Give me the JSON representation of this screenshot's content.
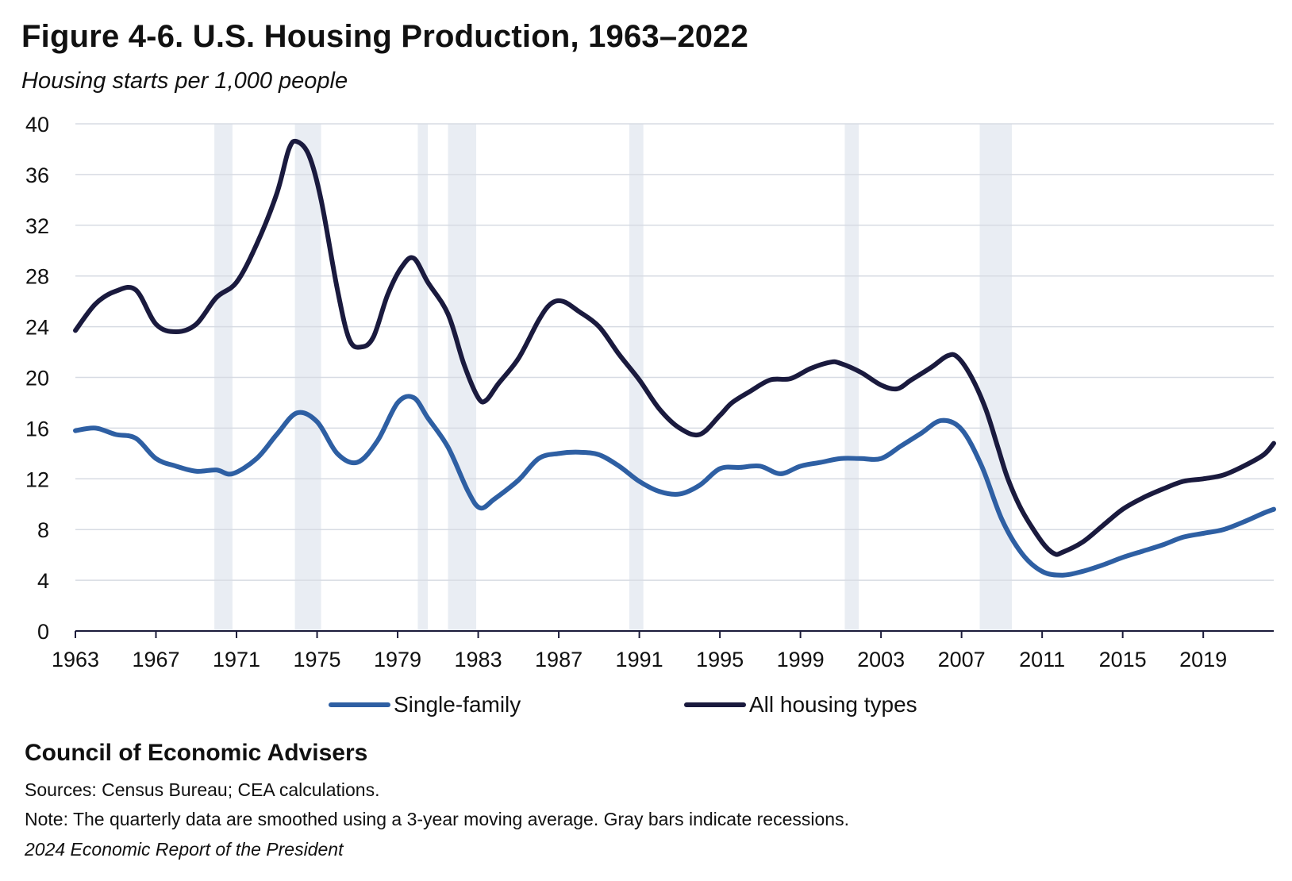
{
  "title": "Figure 4-6. U.S. Housing Production, 1963–2022",
  "subtitle": "Housing starts per 1,000 people",
  "footer": {
    "org": "Council of Economic Advisers",
    "sources": "Sources: Census Bureau; CEA calculations.",
    "note": "Note: The quarterly data are smoothed using a 3-year moving average. Gray bars indicate recessions.",
    "report": "2024 Economic Report of the President"
  },
  "chart_data": {
    "type": "line",
    "title": "Figure 4-6. U.S. Housing Production, 1963–2022",
    "subtitle": "Housing starts per 1,000 people",
    "xlabel": "",
    "ylabel": "Housing starts per 1,000 people",
    "xlim": [
      1963,
      2022.5
    ],
    "ylim": [
      0,
      40
    ],
    "xticks": [
      "1963",
      "1967",
      "1971",
      "1975",
      "1979",
      "1983",
      "1987",
      "1991",
      "1995",
      "1999",
      "2003",
      "2007",
      "2011",
      "2015",
      "2019"
    ],
    "yticks": [
      "0",
      "4",
      "8",
      "12",
      "16",
      "20",
      "24",
      "28",
      "32",
      "36",
      "40"
    ],
    "grid": "horizontal",
    "legend": "bottom",
    "recessions": [
      [
        1969.9,
        1970.8
      ],
      [
        1973.9,
        1975.2
      ],
      [
        1980.0,
        1980.5
      ],
      [
        1981.5,
        1982.9
      ],
      [
        1990.5,
        1991.2
      ],
      [
        2001.2,
        2001.9
      ],
      [
        2007.9,
        2009.5
      ]
    ],
    "colors": {
      "recession": "#e9edf3",
      "grid": "#d7dbe3",
      "axis": "#1b1b3a"
    },
    "series": [
      {
        "name": "Single-family",
        "color": "#2e5fa3",
        "points": [
          [
            1963.0,
            15.8
          ],
          [
            1964.0,
            16.0
          ],
          [
            1965.0,
            15.5
          ],
          [
            1966.0,
            15.2
          ],
          [
            1967.0,
            13.6
          ],
          [
            1968.0,
            13.0
          ],
          [
            1969.0,
            12.6
          ],
          [
            1970.0,
            12.7
          ],
          [
            1970.8,
            12.4
          ],
          [
            1972.0,
            13.6
          ],
          [
            1973.0,
            15.5
          ],
          [
            1974.0,
            17.2
          ],
          [
            1975.0,
            16.5
          ],
          [
            1976.0,
            14.0
          ],
          [
            1977.0,
            13.3
          ],
          [
            1978.0,
            15.0
          ],
          [
            1979.0,
            18.0
          ],
          [
            1979.8,
            18.4
          ],
          [
            1980.5,
            16.8
          ],
          [
            1981.5,
            14.5
          ],
          [
            1982.5,
            11.0
          ],
          [
            1983.1,
            9.7
          ],
          [
            1983.8,
            10.4
          ],
          [
            1985.0,
            11.9
          ],
          [
            1986.0,
            13.6
          ],
          [
            1987.0,
            14.0
          ],
          [
            1988.0,
            14.1
          ],
          [
            1989.0,
            13.9
          ],
          [
            1990.0,
            13.0
          ],
          [
            1991.0,
            11.8
          ],
          [
            1992.0,
            11.0
          ],
          [
            1993.0,
            10.8
          ],
          [
            1994.0,
            11.5
          ],
          [
            1995.0,
            12.8
          ],
          [
            1996.0,
            12.9
          ],
          [
            1997.0,
            13.0
          ],
          [
            1998.0,
            12.4
          ],
          [
            1999.0,
            13.0
          ],
          [
            2000.0,
            13.3
          ],
          [
            2001.0,
            13.6
          ],
          [
            2002.0,
            13.6
          ],
          [
            2003.0,
            13.6
          ],
          [
            2004.0,
            14.6
          ],
          [
            2005.0,
            15.6
          ],
          [
            2006.0,
            16.6
          ],
          [
            2007.0,
            15.9
          ],
          [
            2008.0,
            13.0
          ],
          [
            2009.0,
            8.8
          ],
          [
            2010.0,
            6.1
          ],
          [
            2011.0,
            4.7
          ],
          [
            2012.0,
            4.4
          ],
          [
            2013.0,
            4.7
          ],
          [
            2014.0,
            5.2
          ],
          [
            2015.0,
            5.8
          ],
          [
            2016.0,
            6.3
          ],
          [
            2017.0,
            6.8
          ],
          [
            2018.0,
            7.4
          ],
          [
            2019.0,
            7.7
          ],
          [
            2020.0,
            8.0
          ],
          [
            2021.0,
            8.6
          ],
          [
            2022.0,
            9.3
          ],
          [
            2022.5,
            9.6
          ]
        ]
      },
      {
        "name": "All housing types",
        "color": "#1a1a3e",
        "points": [
          [
            1963.0,
            23.7
          ],
          [
            1964.0,
            25.8
          ],
          [
            1965.0,
            26.8
          ],
          [
            1966.0,
            26.9
          ],
          [
            1967.0,
            24.2
          ],
          [
            1968.0,
            23.6
          ],
          [
            1969.0,
            24.2
          ],
          [
            1970.0,
            26.3
          ],
          [
            1971.0,
            27.5
          ],
          [
            1972.0,
            30.5
          ],
          [
            1973.0,
            34.5
          ],
          [
            1973.6,
            38.0
          ],
          [
            1974.0,
            38.6
          ],
          [
            1974.6,
            37.5
          ],
          [
            1975.2,
            34.0
          ],
          [
            1976.0,
            27.0
          ],
          [
            1976.6,
            23.0
          ],
          [
            1977.2,
            22.4
          ],
          [
            1977.8,
            23.2
          ],
          [
            1978.5,
            26.5
          ],
          [
            1979.2,
            28.7
          ],
          [
            1979.8,
            29.4
          ],
          [
            1980.5,
            27.5
          ],
          [
            1981.5,
            25.0
          ],
          [
            1982.3,
            21.0
          ],
          [
            1983.0,
            18.4
          ],
          [
            1983.4,
            18.2
          ],
          [
            1984.0,
            19.5
          ],
          [
            1985.0,
            21.5
          ],
          [
            1986.0,
            24.5
          ],
          [
            1986.6,
            25.8
          ],
          [
            1987.2,
            26.0
          ],
          [
            1988.0,
            25.2
          ],
          [
            1989.0,
            24.0
          ],
          [
            1990.0,
            21.8
          ],
          [
            1991.0,
            19.8
          ],
          [
            1992.0,
            17.5
          ],
          [
            1993.0,
            16.0
          ],
          [
            1994.0,
            15.5
          ],
          [
            1995.0,
            17.0
          ],
          [
            1995.6,
            18.0
          ],
          [
            1996.5,
            18.9
          ],
          [
            1997.5,
            19.8
          ],
          [
            1998.5,
            19.9
          ],
          [
            1999.5,
            20.7
          ],
          [
            2000.5,
            21.2
          ],
          [
            2001.0,
            21.1
          ],
          [
            2002.0,
            20.4
          ],
          [
            2003.0,
            19.4
          ],
          [
            2003.8,
            19.1
          ],
          [
            2004.5,
            19.8
          ],
          [
            2005.5,
            20.8
          ],
          [
            2006.3,
            21.7
          ],
          [
            2006.8,
            21.6
          ],
          [
            2007.5,
            20.0
          ],
          [
            2008.2,
            17.5
          ],
          [
            2008.8,
            14.5
          ],
          [
            2009.3,
            12.0
          ],
          [
            2010.0,
            9.5
          ],
          [
            2011.0,
            7.0
          ],
          [
            2011.6,
            6.1
          ],
          [
            2012.0,
            6.2
          ],
          [
            2013.0,
            7.0
          ],
          [
            2014.0,
            8.3
          ],
          [
            2015.0,
            9.6
          ],
          [
            2016.0,
            10.5
          ],
          [
            2017.0,
            11.2
          ],
          [
            2018.0,
            11.8
          ],
          [
            2019.0,
            12.0
          ],
          [
            2020.0,
            12.3
          ],
          [
            2021.0,
            13.0
          ],
          [
            2022.0,
            13.9
          ],
          [
            2022.5,
            14.8
          ]
        ]
      }
    ]
  }
}
